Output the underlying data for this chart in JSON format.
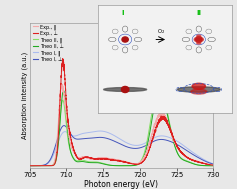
{
  "xlabel": "Photon energy (eV)",
  "ylabel": "Absorption intensity (a.u.)",
  "xlim": [
    705,
    730
  ],
  "ylim": [
    -0.02,
    1.15
  ],
  "xticks": [
    705,
    710,
    715,
    720,
    725,
    730
  ],
  "legend": [
    {
      "label": "Exp., ‖",
      "color": "#f4aaaa",
      "lw": 0.8
    },
    {
      "label": "Exp., ⊥",
      "color": "#dd2020",
      "lw": 0.8
    },
    {
      "label": "Theo II, ‖",
      "color": "#99ee77",
      "lw": 1.0
    },
    {
      "label": "Theo II, ⊥",
      "color": "#22aa22",
      "lw": 1.0
    },
    {
      "label": "Theo I, ‖",
      "color": "#aabbee",
      "lw": 1.0
    },
    {
      "label": "Theo I, ⊥",
      "color": "#4455bb",
      "lw": 1.0
    }
  ],
  "bg_color": "#e8e8e8"
}
